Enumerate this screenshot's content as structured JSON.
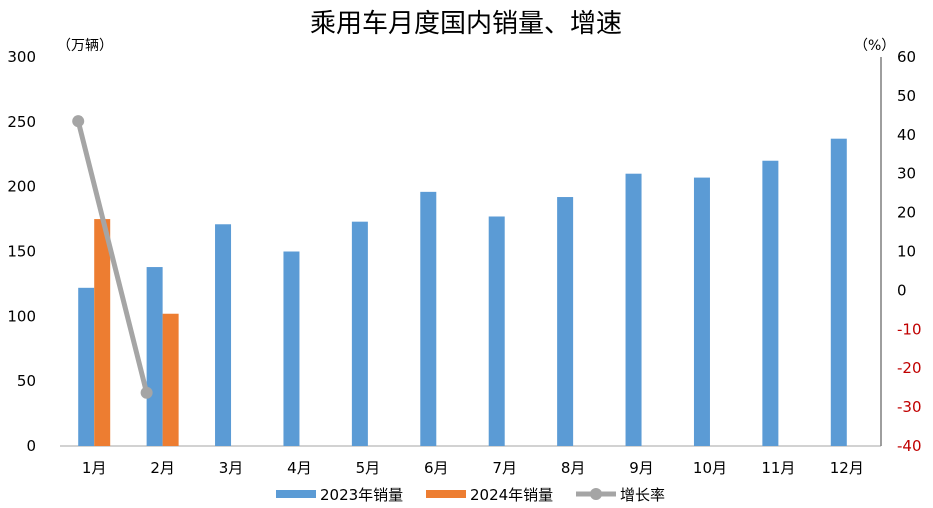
{
  "chart_data": {
    "type": "bar",
    "title": "乘用车月度国内销量、增速",
    "left_unit": "（万辆）",
    "right_unit": "（%）",
    "categories": [
      "1月",
      "2月",
      "3月",
      "4月",
      "5月",
      "6月",
      "7月",
      "8月",
      "9月",
      "10月",
      "11月",
      "12月"
    ],
    "series": [
      {
        "name": "2023年销量",
        "type": "bar",
        "axis": "left",
        "color": "#5B9BD5",
        "values": [
          122,
          138,
          171,
          150,
          173,
          196,
          177,
          192,
          210,
          207,
          220,
          237
        ]
      },
      {
        "name": "2024年销量",
        "type": "bar",
        "axis": "left",
        "color": "#ED7D31",
        "values": [
          175,
          102,
          null,
          null,
          null,
          null,
          null,
          null,
          null,
          null,
          null,
          null
        ]
      },
      {
        "name": "增长率",
        "type": "line",
        "axis": "right",
        "color": "#A5A5A5",
        "values": [
          43.5,
          -26.3,
          null,
          null,
          null,
          null,
          null,
          null,
          null,
          null,
          null,
          null
        ]
      }
    ],
    "y_left": {
      "min": 0,
      "max": 300,
      "step": 50,
      "ticks": [
        "0",
        "50",
        "100",
        "150",
        "200",
        "250",
        "300"
      ]
    },
    "y_right": {
      "min": -40,
      "max": 60,
      "step": 10,
      "ticks": [
        "-40",
        "-30",
        "-20",
        "-10",
        "0",
        "10",
        "20",
        "30",
        "40",
        "50",
        "60"
      ],
      "negative_color": "#C00000"
    },
    "legend_position": "bottom",
    "grid": false
  }
}
